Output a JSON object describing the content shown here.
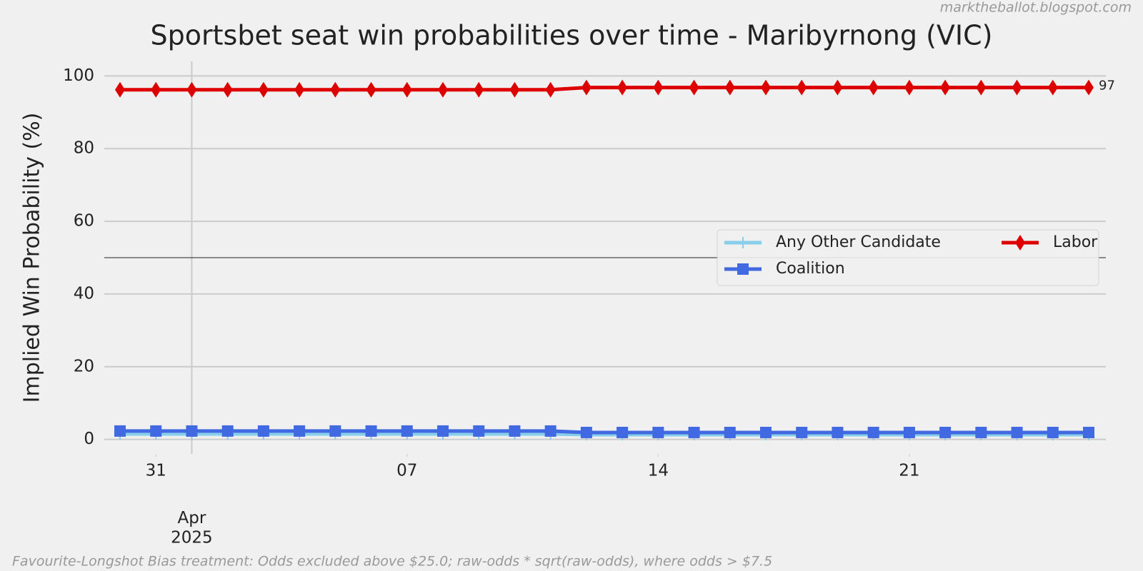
{
  "chart_data": {
    "type": "line",
    "title": "Sportsbet seat win probabilities over time - Maribyrnong (VIC)",
    "y_label": "Implied Win Probability (%)",
    "watermark": "marktheballot.blogspot.com",
    "footnote": "Favourite-Longshot Bias treatment: Odds excluded above $25.0; raw-odds * sqrt(raw-odds), where odds > $7.5",
    "x": [
      "2025-03-30",
      "2025-03-31",
      "2025-04-01",
      "2025-04-02",
      "2025-04-03",
      "2025-04-04",
      "2025-04-05",
      "2025-04-06",
      "2025-04-07",
      "2025-04-08",
      "2025-04-09",
      "2025-04-10",
      "2025-04-11",
      "2025-04-12",
      "2025-04-13",
      "2025-04-14",
      "2025-04-15",
      "2025-04-16",
      "2025-04-17",
      "2025-04-18",
      "2025-04-19",
      "2025-04-20",
      "2025-04-21",
      "2025-04-22",
      "2025-04-23",
      "2025-04-24",
      "2025-04-25",
      "2025-04-26"
    ],
    "xlim": [
      "2025-03-30",
      "2025-04-26"
    ],
    "xticks": [
      {
        "value": "2025-03-31",
        "label": "31"
      },
      {
        "value": "2025-04-07",
        "label": "07"
      },
      {
        "value": "2025-04-14",
        "label": "14"
      },
      {
        "value": "2025-04-21",
        "label": "21"
      }
    ],
    "xticks_major": [
      {
        "value": "2025-04-01",
        "label": "Apr\n2025"
      }
    ],
    "ylim": [
      -4,
      104
    ],
    "yticks": [
      0,
      20,
      40,
      60,
      80,
      100
    ],
    "grid": true,
    "hline": 50,
    "legend": "right",
    "series": [
      {
        "name": "Any Other Candidate",
        "color": "#87ceeb",
        "marker": "plus",
        "values": [
          1.5,
          1.5,
          1.5,
          1.5,
          1.5,
          1.5,
          1.5,
          1.5,
          1.5,
          1.5,
          1.5,
          1.5,
          1.5,
          1.3,
          1.3,
          1.3,
          1.3,
          1.3,
          1.3,
          1.3,
          1.3,
          1.3,
          1.3,
          1.3,
          1.3,
          1.3,
          1.3,
          1.3
        ]
      },
      {
        "name": "Coalition",
        "color": "#4169e1",
        "marker": "square",
        "values": [
          2.3,
          2.3,
          2.3,
          2.3,
          2.3,
          2.3,
          2.3,
          2.3,
          2.3,
          2.3,
          2.3,
          2.3,
          2.3,
          1.9,
          1.9,
          1.9,
          1.9,
          1.9,
          1.9,
          1.9,
          1.9,
          1.9,
          1.9,
          1.9,
          1.9,
          1.9,
          1.9,
          1.9
        ]
      },
      {
        "name": "Labor",
        "color": "#dd0000",
        "marker": "diamond",
        "values": [
          96.2,
          96.2,
          96.2,
          96.2,
          96.2,
          96.2,
          96.2,
          96.2,
          96.2,
          96.2,
          96.2,
          96.2,
          96.2,
          96.8,
          96.8,
          96.8,
          96.8,
          96.8,
          96.8,
          96.8,
          96.8,
          96.8,
          96.8,
          96.8,
          96.8,
          96.8,
          96.8,
          96.8
        ],
        "end_label": "97"
      }
    ]
  }
}
